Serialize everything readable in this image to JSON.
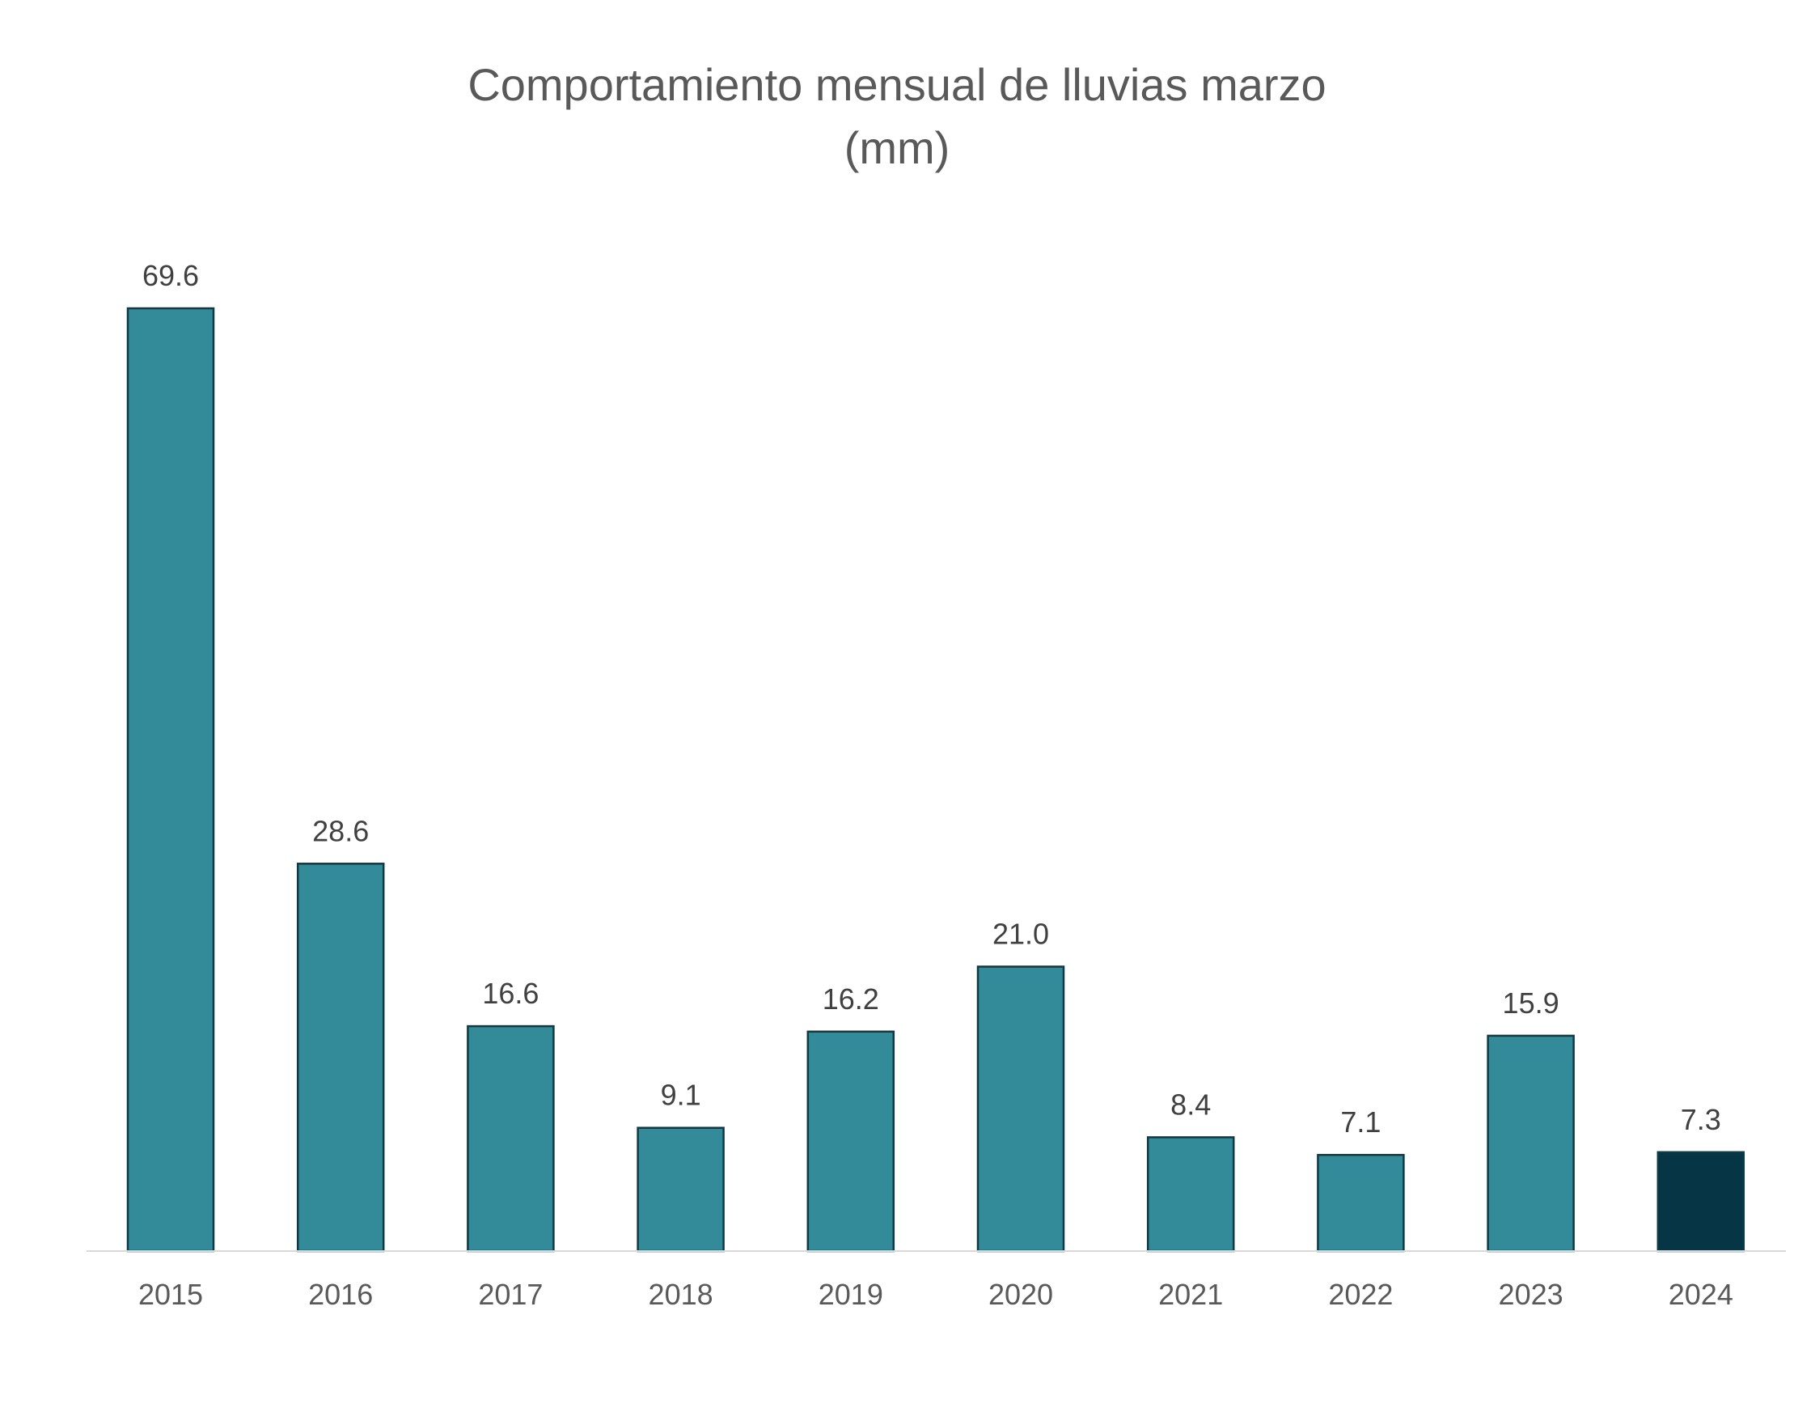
{
  "chart_data": {
    "type": "bar",
    "title_lines": [
      "Comportamiento mensual de lluvias marzo",
      "(mm)"
    ],
    "categories": [
      "2015",
      "2016",
      "2017",
      "2018",
      "2019",
      "2020",
      "2021",
      "2022",
      "2023",
      "2024"
    ],
    "values": [
      69.6,
      28.6,
      16.6,
      9.1,
      16.2,
      21.0,
      8.4,
      7.1,
      15.9,
      7.3
    ],
    "value_labels": [
      "69.6",
      "28.6",
      "16.6",
      "9.1",
      "16.2",
      "21.0",
      "8.4",
      "7.1",
      "15.9",
      "7.3"
    ],
    "xlabel": "",
    "ylabel": "",
    "ylim": [
      0,
      69.6
    ],
    "grid": false,
    "legend": "none",
    "colors": {
      "bar": "#338b99",
      "highlight_bar": "#063545",
      "bar_outline": "#0d3a44",
      "axis": "#d9d9d9",
      "title": "#595959",
      "data_label": "#404040",
      "tick_label": "#595959"
    },
    "highlight_index": 9
  }
}
